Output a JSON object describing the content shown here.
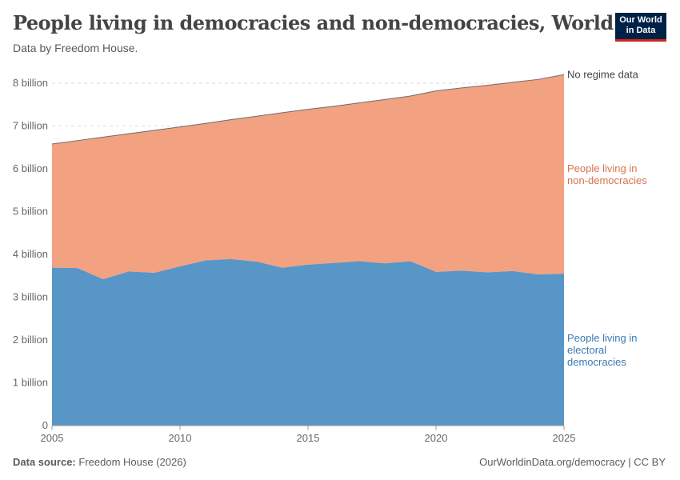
{
  "header": {
    "title": "People living in democracies and non-democracies, World",
    "subtitle": "Data by Freedom House.",
    "logo": "Our World in Data"
  },
  "footer": {
    "source_label": "Data source:",
    "source": "Freedom House (2026)",
    "link": "OurWorldinData.org/democracy | CC BY"
  },
  "colors": {
    "democracies": "#5796c6",
    "non_democracies": "#f2a181",
    "no_data_line": "#6d6d6d"
  },
  "chart_data": {
    "type": "area",
    "stacked": true,
    "grid": true,
    "legend": "right",
    "xlim": [
      2005,
      2025
    ],
    "ylim": [
      0,
      8000000000
    ],
    "x": [
      2005,
      2006,
      2007,
      2008,
      2009,
      2010,
      2011,
      2012,
      2013,
      2014,
      2015,
      2016,
      2017,
      2018,
      2019,
      2020,
      2021,
      2022,
      2023,
      2024,
      2025
    ],
    "x_ticks": [
      "2005",
      "2010",
      "2015",
      "2020",
      "2025"
    ],
    "y_ticks": [
      "0",
      "1 billion",
      "2 billion",
      "3 billion",
      "4 billion",
      "5 billion",
      "6 billion",
      "7 billion",
      "8 billion"
    ],
    "series": [
      {
        "name": "People living in electoral democracies",
        "values": [
          3690000000.0,
          3680000000.0,
          3420000000.0,
          3600000000.0,
          3570000000.0,
          3720000000.0,
          3860000000.0,
          3890000000.0,
          3830000000.0,
          3690000000.0,
          3760000000.0,
          3800000000.0,
          3840000000.0,
          3790000000.0,
          3840000000.0,
          3590000000.0,
          3620000000.0,
          3580000000.0,
          3610000000.0,
          3530000000.0,
          3550000000.0
        ]
      },
      {
        "name": "People living in non-democracies",
        "values": [
          2890000000.0,
          2980000000.0,
          3320000000.0,
          3220000000.0,
          3330000000.0,
          3260000000.0,
          3200000000.0,
          3260000000.0,
          3400000000.0,
          3620000000.0,
          3630000000.0,
          3660000000.0,
          3700000000.0,
          3830000000.0,
          3860000000.0,
          4230000000.0,
          4270000000.0,
          4370000000.0,
          4410000000.0,
          4560000000.0,
          4650000000.0
        ]
      },
      {
        "name": "No regime data",
        "values": [
          0,
          0,
          0,
          0,
          0,
          0,
          0,
          0,
          0,
          0,
          0,
          0,
          0,
          0,
          0,
          0,
          0,
          0,
          0,
          0,
          0
        ]
      }
    ],
    "legend_labels": [
      [
        "No regime data"
      ],
      [
        "People living in",
        "non-democracies"
      ],
      [
        "People living in",
        "electoral",
        "democracies"
      ]
    ]
  }
}
